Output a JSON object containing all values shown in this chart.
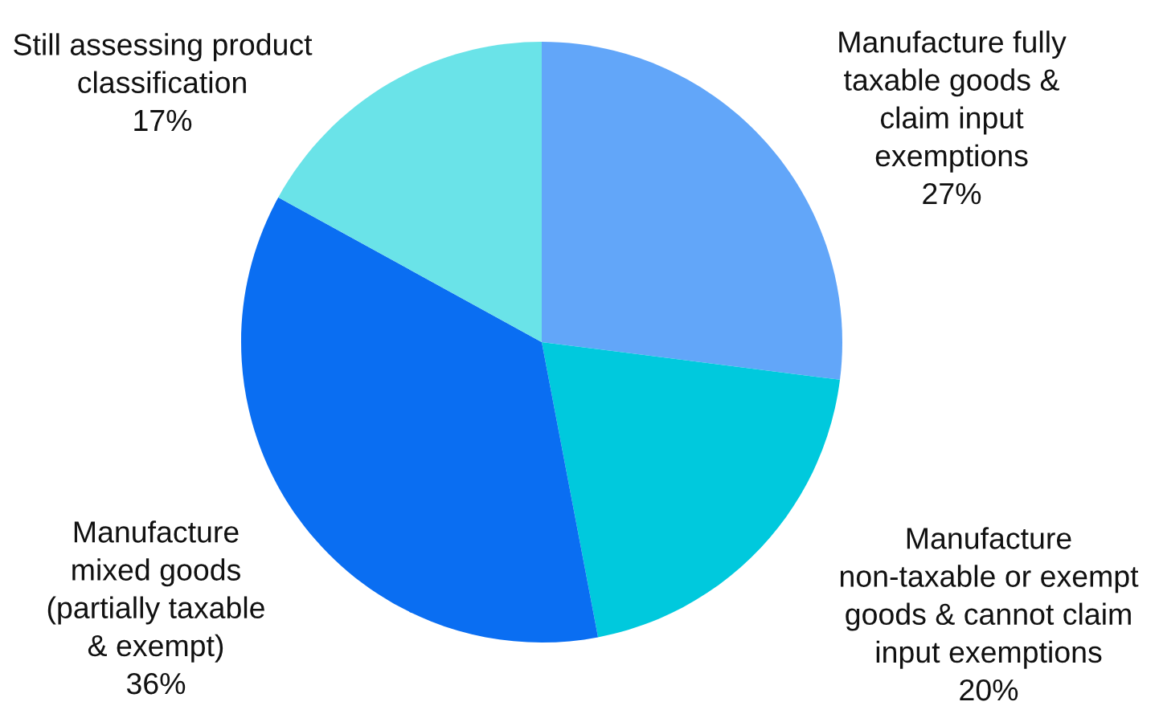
{
  "chart_data": {
    "type": "pie",
    "categories": [
      "Manufacture fully\ntaxable goods &\nclaim input\nexemptions",
      "Manufacture\nnon-taxable or exempt\ngoods & cannot claim\ninput exemptions",
      "Manufacture\nmixed goods\n(partially taxable\n& exempt)",
      "Still assessing product\nclassification"
    ],
    "values": [
      27,
      20,
      36,
      17
    ],
    "value_labels": [
      "27%",
      "20%",
      "36%",
      "17%"
    ],
    "colors": [
      "#62a6f9",
      "#00c9dd",
      "#0a6ef2",
      "#6ae3e8"
    ],
    "legend": false
  }
}
